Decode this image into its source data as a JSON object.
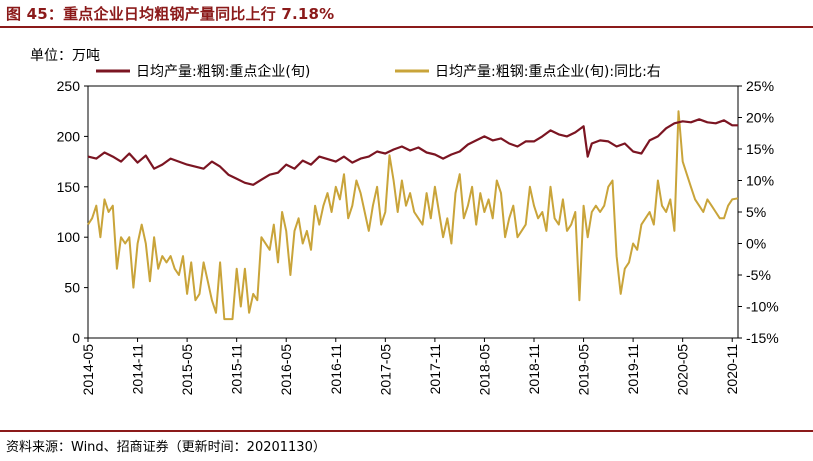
{
  "title": "图 45：重点企业日均粗钢产量同比上行 7.18%",
  "source": "资料来源：Wind、招商证券（更新时间：20201130）",
  "colors": {
    "title": "#8b1a1a",
    "series1": "#7b1522",
    "series2": "#c9a43a"
  },
  "chart_data": {
    "type": "line",
    "unit_label": "单位：万吨",
    "x_ticks": [
      "2014-05",
      "2014-11",
      "2015-05",
      "2015-11",
      "2016-05",
      "2016-11",
      "2017-05",
      "2017-11",
      "2018-05",
      "2018-11",
      "2019-05",
      "2019-11",
      "2020-05",
      "2020-11"
    ],
    "x_range": [
      0,
      78.7
    ],
    "left_axis": {
      "ticks": [
        "0",
        "50",
        "100",
        "150",
        "200",
        "250"
      ],
      "range": [
        0,
        250
      ]
    },
    "right_axis": {
      "ticks": [
        "-15%",
        "-10%",
        "-5%",
        "0%",
        "5%",
        "10%",
        "15%",
        "20%",
        "25%"
      ],
      "range": [
        -15,
        25
      ]
    },
    "legend": [
      {
        "name": "日均产量:粗钢:重点企业(旬)",
        "axis": "left"
      },
      {
        "name": "日均产量:粗钢:重点企业(旬):同比:右",
        "axis": "right"
      }
    ],
    "series": [
      {
        "name": "日均产量:粗钢:重点企业(旬)",
        "axis": "left",
        "points": [
          [
            0,
            180
          ],
          [
            1,
            178
          ],
          [
            2,
            184
          ],
          [
            3,
            180
          ],
          [
            4,
            175
          ],
          [
            5,
            183
          ],
          [
            6,
            174
          ],
          [
            7,
            181
          ],
          [
            8,
            168
          ],
          [
            9,
            172
          ],
          [
            10,
            178
          ],
          [
            12,
            172
          ],
          [
            14,
            168
          ],
          [
            15,
            175
          ],
          [
            16,
            170
          ],
          [
            17,
            162
          ],
          [
            18,
            158
          ],
          [
            19,
            154
          ],
          [
            20,
            152
          ],
          [
            21,
            157
          ],
          [
            22,
            162
          ],
          [
            23,
            164
          ],
          [
            24,
            172
          ],
          [
            25,
            168
          ],
          [
            26,
            176
          ],
          [
            27,
            172
          ],
          [
            28,
            180
          ],
          [
            30,
            175
          ],
          [
            31,
            180
          ],
          [
            32,
            174
          ],
          [
            33,
            178
          ],
          [
            34,
            180
          ],
          [
            35,
            185
          ],
          [
            36,
            183
          ],
          [
            37,
            187
          ],
          [
            38,
            190
          ],
          [
            39,
            186
          ],
          [
            40,
            189
          ],
          [
            41,
            184
          ],
          [
            42,
            182
          ],
          [
            43,
            178
          ],
          [
            44,
            182
          ],
          [
            45,
            185
          ],
          [
            46,
            192
          ],
          [
            47,
            196
          ],
          [
            48,
            200
          ],
          [
            49,
            196
          ],
          [
            50,
            198
          ],
          [
            51,
            193
          ],
          [
            52,
            190
          ],
          [
            53,
            195
          ],
          [
            54,
            195
          ],
          [
            55,
            200
          ],
          [
            56,
            206
          ],
          [
            57,
            202
          ],
          [
            58,
            200
          ],
          [
            59,
            204
          ],
          [
            60,
            210
          ],
          [
            60.5,
            180
          ],
          [
            61,
            193
          ],
          [
            62,
            196
          ],
          [
            63,
            195
          ],
          [
            64,
            190
          ],
          [
            65,
            193
          ],
          [
            66,
            185
          ],
          [
            67,
            183
          ],
          [
            68,
            196
          ],
          [
            69,
            200
          ],
          [
            70,
            208
          ],
          [
            71,
            213
          ],
          [
            72,
            215
          ],
          [
            73,
            214
          ],
          [
            74,
            217
          ],
          [
            75,
            214
          ],
          [
            76,
            213
          ],
          [
            77,
            216
          ],
          [
            78,
            211
          ],
          [
            78.7,
            211
          ]
        ]
      },
      {
        "name": "日均产量:粗钢:重点企业(旬):同比:右",
        "axis": "right",
        "points": [
          [
            0,
            3
          ],
          [
            0.5,
            4
          ],
          [
            1,
            6
          ],
          [
            1.5,
            1
          ],
          [
            2,
            7
          ],
          [
            2.5,
            5
          ],
          [
            3,
            6
          ],
          [
            3.5,
            -4
          ],
          [
            4,
            1
          ],
          [
            4.5,
            0
          ],
          [
            5,
            1
          ],
          [
            5.5,
            -7
          ],
          [
            6,
            0
          ],
          [
            6.5,
            3
          ],
          [
            7,
            0
          ],
          [
            7.5,
            -6
          ],
          [
            8,
            1
          ],
          [
            8.5,
            -4
          ],
          [
            9,
            -2
          ],
          [
            9.5,
            -3
          ],
          [
            10,
            -2
          ],
          [
            10.5,
            -4
          ],
          [
            11,
            -5
          ],
          [
            11.5,
            -2
          ],
          [
            12,
            -8
          ],
          [
            12.5,
            -3
          ],
          [
            13,
            -9
          ],
          [
            13.5,
            -8
          ],
          [
            14,
            -3
          ],
          [
            14.5,
            -6
          ],
          [
            15,
            -9
          ],
          [
            15.5,
            -11
          ],
          [
            16,
            -3
          ],
          [
            16.5,
            -12
          ],
          [
            17,
            -12
          ],
          [
            17.5,
            -12
          ],
          [
            18,
            -4
          ],
          [
            18.5,
            -10
          ],
          [
            19,
            -4
          ],
          [
            19.5,
            -11
          ],
          [
            20,
            -8
          ],
          [
            20.5,
            -9
          ],
          [
            21,
            1
          ],
          [
            22,
            -1
          ],
          [
            22.5,
            3
          ],
          [
            23,
            -3
          ],
          [
            23.5,
            5
          ],
          [
            24,
            2
          ],
          [
            24.5,
            -5
          ],
          [
            25,
            2
          ],
          [
            25.5,
            4
          ],
          [
            26,
            0
          ],
          [
            26.5,
            2
          ],
          [
            27,
            -1
          ],
          [
            27.5,
            6
          ],
          [
            28,
            3
          ],
          [
            28.5,
            6
          ],
          [
            29,
            8
          ],
          [
            29.5,
            5
          ],
          [
            30,
            9
          ],
          [
            30.5,
            7
          ],
          [
            31,
            11
          ],
          [
            31.5,
            4
          ],
          [
            32,
            6
          ],
          [
            32.5,
            10
          ],
          [
            33,
            8
          ],
          [
            33.5,
            5
          ],
          [
            34,
            2
          ],
          [
            34.5,
            6
          ],
          [
            35,
            9
          ],
          [
            35.5,
            3
          ],
          [
            36,
            5
          ],
          [
            36.5,
            14
          ],
          [
            37,
            10
          ],
          [
            37.5,
            5
          ],
          [
            38,
            10
          ],
          [
            38.5,
            6
          ],
          [
            39,
            8
          ],
          [
            39.5,
            5
          ],
          [
            40,
            4
          ],
          [
            40.5,
            3
          ],
          [
            41,
            8
          ],
          [
            41.5,
            4
          ],
          [
            42,
            9
          ],
          [
            42.5,
            5
          ],
          [
            43,
            1
          ],
          [
            43.5,
            4
          ],
          [
            44,
            0
          ],
          [
            44.5,
            8
          ],
          [
            45,
            11
          ],
          [
            45.5,
            4
          ],
          [
            46,
            6
          ],
          [
            46.5,
            9
          ],
          [
            47,
            3
          ],
          [
            47.5,
            8
          ],
          [
            48,
            5
          ],
          [
            48.5,
            7
          ],
          [
            49,
            4
          ],
          [
            49.5,
            10
          ],
          [
            50,
            8
          ],
          [
            50.5,
            1
          ],
          [
            51,
            4
          ],
          [
            51.5,
            6
          ],
          [
            52,
            1
          ],
          [
            52.5,
            2
          ],
          [
            53,
            3
          ],
          [
            53.5,
            9
          ],
          [
            54,
            6
          ],
          [
            54.5,
            4
          ],
          [
            55,
            5
          ],
          [
            55.5,
            2
          ],
          [
            56,
            9
          ],
          [
            56.5,
            4
          ],
          [
            57,
            3
          ],
          [
            57.5,
            7
          ],
          [
            58,
            2
          ],
          [
            58.5,
            3
          ],
          [
            59,
            5
          ],
          [
            59.5,
            -9
          ],
          [
            60,
            6
          ],
          [
            60.5,
            1
          ],
          [
            61,
            5
          ],
          [
            61.5,
            6
          ],
          [
            62,
            5
          ],
          [
            62.5,
            6
          ],
          [
            63,
            9
          ],
          [
            63.5,
            10
          ],
          [
            64,
            -2
          ],
          [
            64.5,
            -8
          ],
          [
            65,
            -4
          ],
          [
            65.5,
            -3
          ],
          [
            66,
            0
          ],
          [
            66.5,
            -1
          ],
          [
            67,
            3
          ],
          [
            67.5,
            4
          ],
          [
            68,
            5
          ],
          [
            68.5,
            3
          ],
          [
            69,
            10
          ],
          [
            69.5,
            6
          ],
          [
            70,
            5
          ],
          [
            70.5,
            7
          ],
          [
            71,
            2
          ],
          [
            71.5,
            21
          ],
          [
            72,
            13
          ],
          [
            72.5,
            11
          ],
          [
            73,
            9
          ],
          [
            73.5,
            7
          ],
          [
            74,
            6
          ],
          [
            74.5,
            5
          ],
          [
            75,
            7
          ],
          [
            75.5,
            6
          ],
          [
            76,
            5
          ],
          [
            76.5,
            4
          ],
          [
            77,
            4
          ],
          [
            77.5,
            6
          ],
          [
            78,
            7
          ],
          [
            78.7,
            7.18
          ]
        ]
      }
    ]
  }
}
